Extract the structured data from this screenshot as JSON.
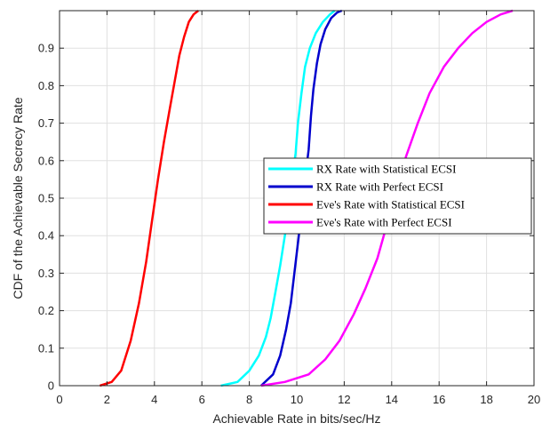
{
  "chart_data": {
    "type": "line",
    "xlabel": "Achievable Rate in bits/sec/Hz",
    "ylabel": "CDF of the Achievable Secrecy Rate",
    "xlim": [
      0,
      20
    ],
    "ylim": [
      0,
      1
    ],
    "xticks": [
      "0",
      "2",
      "4",
      "6",
      "8",
      "10",
      "12",
      "14",
      "16",
      "18",
      "20"
    ],
    "yticks": [
      "0",
      "0.1",
      "0.2",
      "0.3",
      "0.4",
      "0.5",
      "0.6",
      "0.7",
      "0.8",
      "0.9"
    ],
    "grid": true,
    "legend_position": "center-right",
    "series": [
      {
        "name": "RX Rate with Statistical ECSI",
        "color": "#00FFFF",
        "x": [
          6.8,
          7.5,
          8.0,
          8.4,
          8.7,
          8.9,
          9.1,
          9.3,
          9.5,
          9.7,
          9.8,
          9.95,
          10.05,
          10.2,
          10.35,
          10.55,
          10.8,
          11.1,
          11.4,
          11.6
        ],
        "y": [
          0.0,
          0.01,
          0.04,
          0.08,
          0.13,
          0.18,
          0.25,
          0.32,
          0.4,
          0.48,
          0.55,
          0.62,
          0.7,
          0.78,
          0.85,
          0.9,
          0.94,
          0.97,
          0.99,
          1.0
        ]
      },
      {
        "name": "RX Rate with Perfect ECSI",
        "color": "#0000CD",
        "x": [
          8.5,
          9.0,
          9.3,
          9.55,
          9.75,
          9.9,
          10.05,
          10.2,
          10.35,
          10.5,
          10.6,
          10.7,
          10.85,
          11.0,
          11.2,
          11.45,
          11.7,
          11.9
        ],
        "y": [
          0.0,
          0.03,
          0.08,
          0.15,
          0.22,
          0.3,
          0.38,
          0.46,
          0.55,
          0.63,
          0.72,
          0.79,
          0.86,
          0.91,
          0.95,
          0.98,
          0.995,
          1.0
        ]
      },
      {
        "name": "Eve's Rate with Statistical ECSI",
        "color": "#FF0000",
        "x": [
          1.7,
          2.2,
          2.6,
          3.0,
          3.35,
          3.65,
          3.9,
          4.15,
          4.4,
          4.65,
          4.85,
          5.05,
          5.25,
          5.45,
          5.65,
          5.85
        ],
        "y": [
          0.0,
          0.01,
          0.04,
          0.12,
          0.22,
          0.33,
          0.44,
          0.55,
          0.65,
          0.74,
          0.81,
          0.88,
          0.93,
          0.97,
          0.99,
          1.0
        ]
      },
      {
        "name": "Eve's Rate with Perfect ECSI",
        "color": "#FF00FF",
        "x": [
          8.5,
          9.5,
          10.5,
          11.2,
          11.8,
          12.4,
          12.9,
          13.4,
          13.8,
          14.2,
          14.6,
          15.1,
          15.6,
          16.2,
          16.8,
          17.4,
          18.0,
          18.6,
          19.1
        ],
        "y": [
          0.0,
          0.01,
          0.03,
          0.07,
          0.12,
          0.19,
          0.26,
          0.34,
          0.43,
          0.52,
          0.61,
          0.7,
          0.78,
          0.85,
          0.9,
          0.94,
          0.97,
          0.99,
          1.0
        ]
      }
    ]
  }
}
